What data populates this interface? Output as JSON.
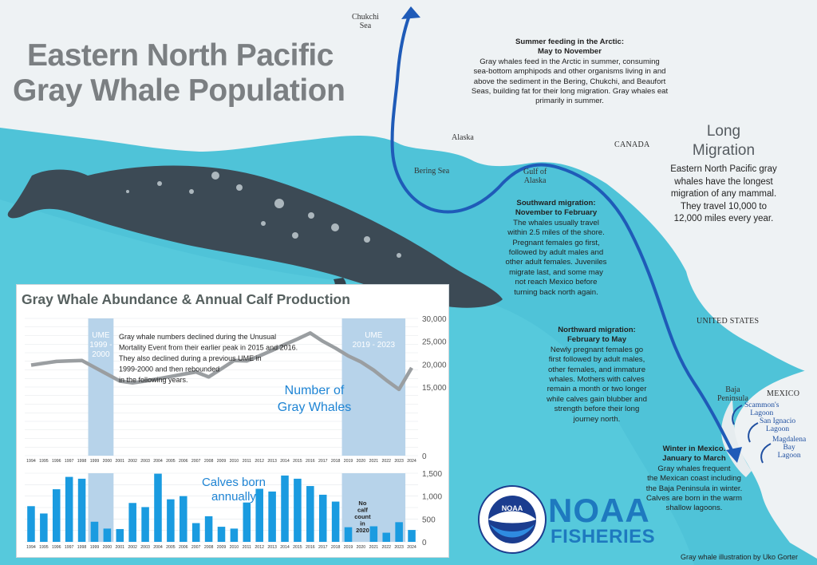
{
  "title": {
    "line1": "Eastern North Pacific",
    "line2": "Gray Whale Population"
  },
  "map_labels": {
    "chukchi_1": "Chukchi",
    "chukchi_2": "Sea",
    "alaska": "Alaska",
    "bering": "Bering Sea",
    "gulf_1": "Gulf of",
    "gulf_2": "Alaska",
    "canada": "CANADA",
    "united_states": "UNITED STATES",
    "baja_1": "Baja",
    "baja_2": "Peninsula",
    "mexico": "MEXICO",
    "scammon_1": "Scammon's",
    "scammon_2": "Lagoon",
    "sanignacio_1": "San Ignacio",
    "sanignacio_2": "Lagoon",
    "magdalena_1": "Magdalena",
    "magdalena_2": "Bay",
    "magdalena_3": "Lagoon"
  },
  "notes": {
    "summer": {
      "h1": "Summer feeding in the Arctic:",
      "h2": "May to November",
      "body": [
        "Gray whales feed in the Arctic in summer, consuming",
        "sea-bottom amphipods and other organisms living in and",
        "above the sediment in the Bering, Chukchi, and Beaufort",
        "Seas, building fat for their long migration. Gray whales eat",
        "primarily in summer."
      ]
    },
    "southward": {
      "h1": "Southward migration:",
      "h2": "November to February",
      "body": [
        "The whales usually travel",
        "within 2.5 miles of the shore.",
        "Pregnant females go first,",
        "followed by adult males and",
        "other adult females. Juveniles",
        "migrate last, and some may",
        "not reach Mexico before",
        "turning back north again."
      ]
    },
    "northward": {
      "h1": "Northward migration:",
      "h2": "February to May",
      "body": [
        "Newly pregnant females go",
        "first followed by adult males,",
        "other females, and immature",
        "whales. Mothers with calves",
        "remain a month or two longer",
        "while calves gain blubber and",
        "strength before their long",
        "journey north."
      ]
    },
    "winter": {
      "h1": "Winter in Mexico.",
      "h2": "January to March",
      "body": [
        "Gray whales frequent",
        "the Mexican coast including",
        "the Baja Peninsula in winter.",
        "Calves are born in the warm",
        "shallow lagoons."
      ]
    }
  },
  "long_migration": {
    "title1": "Long",
    "title2": "Migration",
    "body": [
      "Eastern North Pacific gray",
      "whales have the longest",
      "migration of any mammal.",
      "They travel 10,000 to",
      "12,000 miles every year."
    ]
  },
  "logo": {
    "noaa": "NOAA",
    "fisheries": "FISHERIES",
    "seal_text": "NOAA"
  },
  "credit": "Gray whale illustration by Uko Gorter",
  "colors": {
    "ocean": "#4fc3d8",
    "land": "#eef2f4",
    "route": "#1f5bb8",
    "line_series": "#9a9ea1",
    "bar_series": "#1a9be0",
    "ume_band": "#b7d3ea",
    "title_gray": "#7b7f82",
    "noaa_blue": "#1e79bf"
  },
  "chart_data": [
    {
      "type": "line",
      "title": "Gray Whale Abundance & Annual Calf Production",
      "series_label": [
        "Number of",
        "Gray Whales"
      ],
      "annotation": [
        "Gray whale numbers declined during the Unusual",
        "Mortality Event from their earlier peak in 2015 and 2016.",
        "They also declined during a previous UME in",
        "1999-2000 and then rebounded",
        "in the following years."
      ],
      "x": [
        1994,
        1995,
        1996,
        1997,
        1998,
        1999,
        2000,
        2001,
        2002,
        2003,
        2004,
        2005,
        2006,
        2007,
        2008,
        2009,
        2010,
        2011,
        2012,
        2013,
        2014,
        2015,
        2016,
        2017,
        2018,
        2019,
        2020,
        2021,
        2022,
        2023,
        2024
      ],
      "values": [
        19800,
        20200,
        20600,
        20700,
        20800,
        19300,
        17800,
        16300,
        15900,
        16300,
        16800,
        17300,
        17800,
        18300,
        17200,
        19000,
        20800,
        20700,
        21800,
        23000,
        24300,
        25500,
        26800,
        25000,
        23500,
        21800,
        20500,
        18700,
        16500,
        14500,
        19200
      ],
      "ylim": [
        0,
        30000
      ],
      "yticks": [
        "0",
        "15,000",
        "20,000",
        "25,000",
        "30,000"
      ],
      "ume_bands": [
        {
          "label": [
            "UME",
            "1999 -",
            "2000"
          ],
          "start": 1999,
          "end": 2000
        },
        {
          "label": [
            "UME",
            "2019 - 2023"
          ],
          "start": 2019,
          "end": 2023
        }
      ],
      "grid": true
    },
    {
      "type": "bar",
      "series_label": [
        "Calves born",
        "annually"
      ],
      "categories": [
        1994,
        1995,
        1996,
        1997,
        1998,
        1999,
        2000,
        2001,
        2002,
        2003,
        2004,
        2005,
        2006,
        2007,
        2008,
        2009,
        2010,
        2011,
        2012,
        2013,
        2014,
        2015,
        2016,
        2017,
        2018,
        2019,
        2020,
        2021,
        2022,
        2023,
        2024
      ],
      "values": [
        780,
        620,
        1150,
        1420,
        1380,
        440,
        290,
        280,
        850,
        760,
        1490,
        930,
        1000,
        410,
        560,
        330,
        290,
        860,
        1160,
        1100,
        1450,
        1380,
        1220,
        1030,
        880,
        320,
        null,
        340,
        200,
        430,
        260
      ],
      "no_data_note": [
        "No",
        "calf",
        "count",
        "in",
        "2020"
      ],
      "ylim": [
        0,
        1500
      ],
      "yticks": [
        "0",
        "500",
        "1,000",
        "1,500"
      ],
      "grid": true
    }
  ]
}
